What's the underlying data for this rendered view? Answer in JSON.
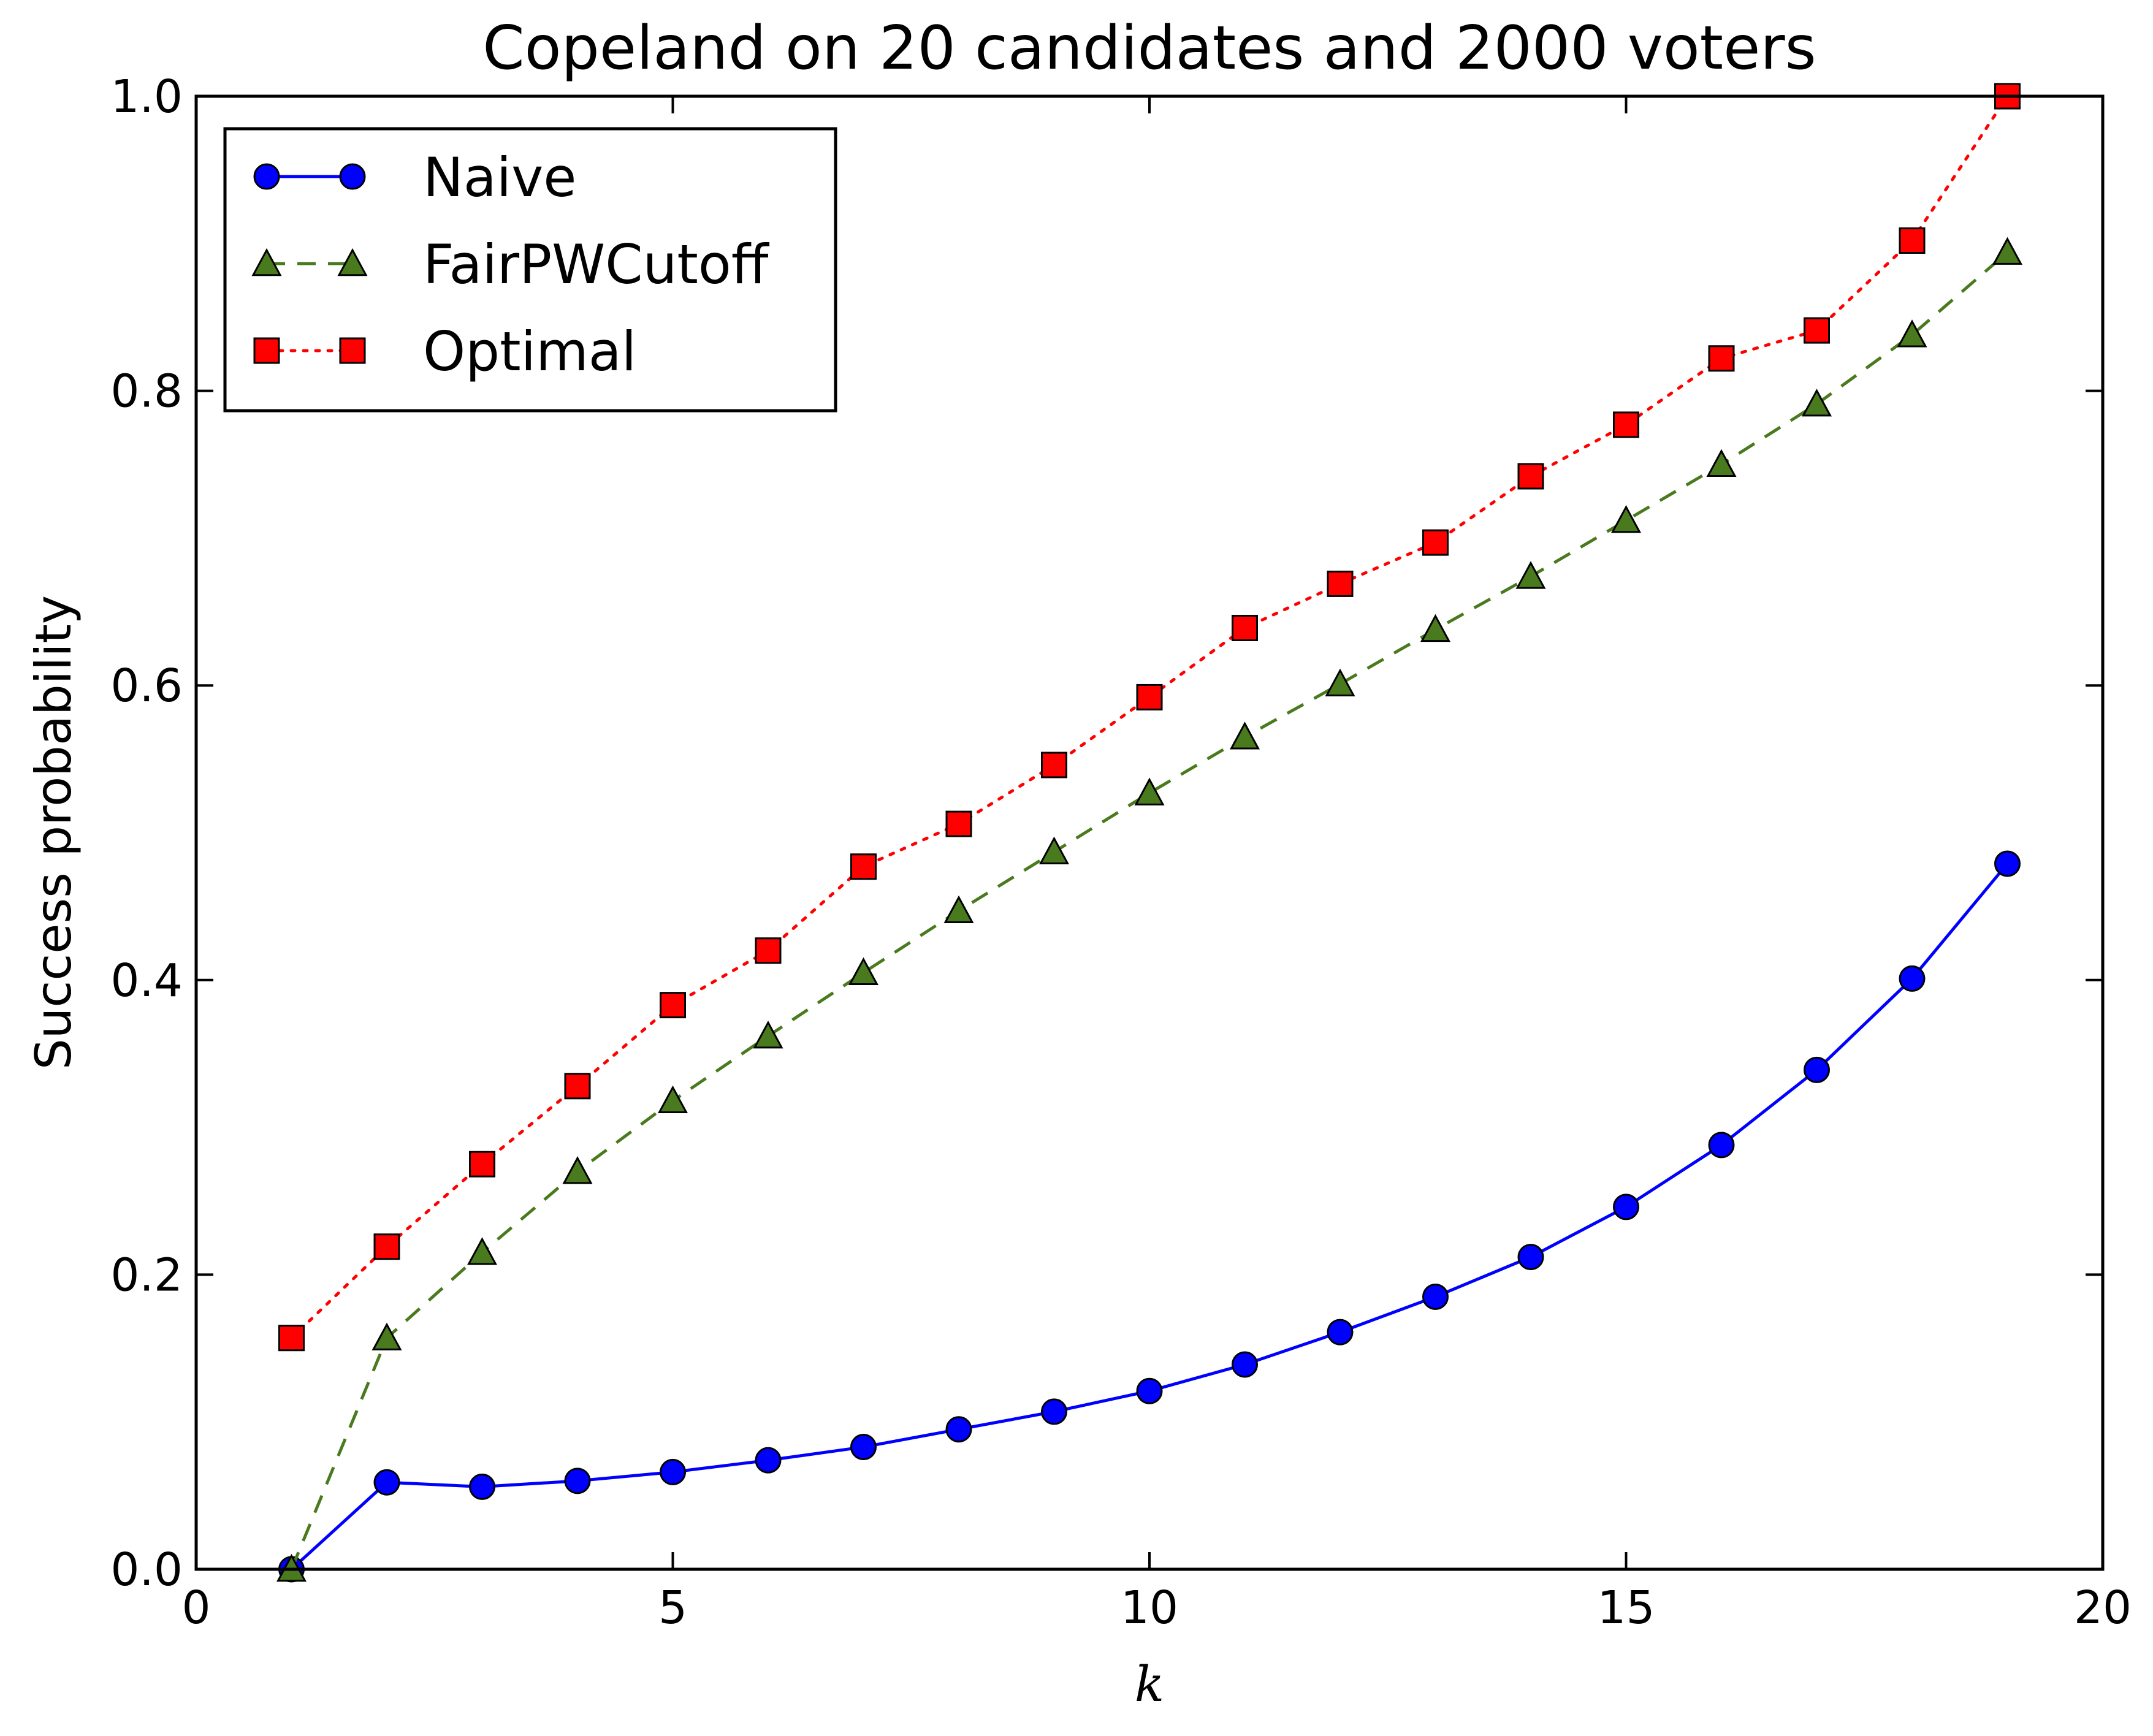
{
  "chart_data": {
    "type": "line",
    "title": "Copeland on 20 candidates and 2000 voters",
    "xlabel": "k",
    "ylabel": "Success probability",
    "xlim": [
      0,
      20
    ],
    "ylim": [
      0,
      1
    ],
    "xticks": [
      0,
      5,
      10,
      15,
      20
    ],
    "xtick_labels": [
      "0",
      "5",
      "10",
      "15",
      "20"
    ],
    "yticks": [
      0,
      0.2,
      0.4,
      0.6,
      0.8,
      1
    ],
    "ytick_labels": [
      "0.0",
      "0.2",
      "0.4",
      "0.6",
      "0.8",
      "1.0"
    ],
    "grid": false,
    "legend_position": "top-left",
    "x": [
      1,
      2,
      3,
      4,
      5,
      6,
      7,
      8,
      9,
      10,
      11,
      12,
      13,
      14,
      15,
      16,
      17,
      18,
      19
    ],
    "series": [
      {
        "name": "Naive",
        "color": "#0000ff",
        "line_style": "solid",
        "marker": "circle",
        "values": [
          0.0,
          0.059,
          0.056,
          0.06,
          0.066,
          0.074,
          0.083,
          0.095,
          0.107,
          0.121,
          0.139,
          0.161,
          0.185,
          0.212,
          0.246,
          0.288,
          0.339,
          0.401,
          0.479
        ]
      },
      {
        "name": "FairPWCutoff",
        "color": "#4a7a1e",
        "line_style": "dashed",
        "marker": "triangle",
        "values": [
          0.0,
          0.157,
          0.215,
          0.27,
          0.318,
          0.362,
          0.405,
          0.447,
          0.487,
          0.527,
          0.565,
          0.601,
          0.638,
          0.674,
          0.712,
          0.75,
          0.791,
          0.838,
          0.894
        ]
      },
      {
        "name": "Optimal",
        "color": "#ff0000",
        "line_style": "dotted",
        "marker": "square",
        "values": [
          0.157,
          0.219,
          0.275,
          0.328,
          0.383,
          0.42,
          0.477,
          0.506,
          0.546,
          0.592,
          0.639,
          0.669,
          0.697,
          0.742,
          0.777,
          0.822,
          0.841,
          0.902,
          1.0
        ]
      }
    ]
  }
}
